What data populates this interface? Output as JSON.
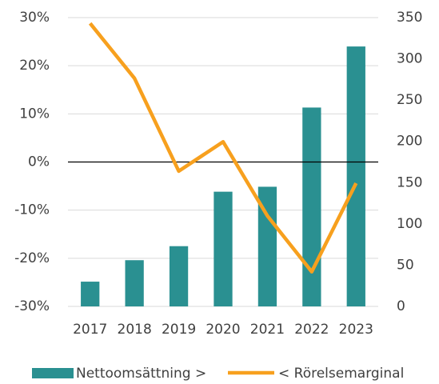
{
  "chart_data": {
    "type": "bar-line",
    "categories": [
      "2017",
      "2018",
      "2019",
      "2020",
      "2021",
      "2022",
      "2023"
    ],
    "series": [
      {
        "name": "Nettoomsättning >",
        "type": "bar",
        "axis": "y2",
        "color": "#2a9091",
        "values": [
          30,
          56,
          73,
          139,
          145,
          241,
          315
        ]
      },
      {
        "name": "< Rörelsemarginal",
        "type": "line",
        "axis": "y",
        "color": "#f7a01e",
        "values": [
          28.8,
          17.4,
          -1.9,
          4.2,
          -11.2,
          -22.8,
          -4.4
        ]
      }
    ],
    "ylim": [
      -30,
      30
    ],
    "yticks": [
      {
        "value": 30,
        "label": "30%"
      },
      {
        "value": 20,
        "label": "20%"
      },
      {
        "value": 10,
        "label": "10%"
      },
      {
        "value": 0,
        "label": "0%"
      },
      {
        "value": -10,
        "label": "-10%"
      },
      {
        "value": -20,
        "label": "-20%"
      },
      {
        "value": -30,
        "label": "-30%"
      }
    ],
    "y2lim": [
      0,
      350
    ],
    "y2ticks": [
      0,
      50,
      100,
      150,
      200,
      250,
      300,
      350
    ],
    "grid": true,
    "legend": "bottom"
  }
}
